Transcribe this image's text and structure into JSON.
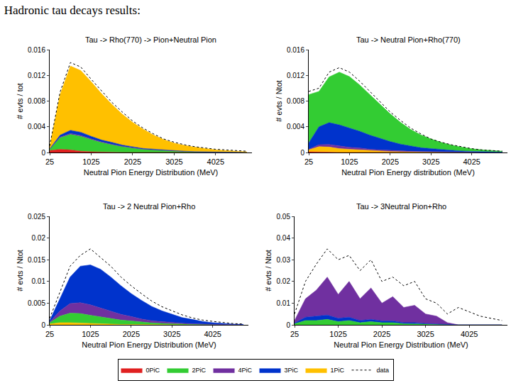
{
  "title": "Hadronic tau decays results:",
  "chart_data": [
    {
      "type": "area",
      "title": "Tau -> Rho(770) -> Pion+Neutral Pion",
      "x_label": "Neutral Pion Energy Distribution (MeV)",
      "y_label": "# evts / tot",
      "x": [
        25,
        275,
        525,
        775,
        1025,
        1275,
        1525,
        1775,
        2025,
        2275,
        2525,
        2775,
        3025,
        3275,
        3525,
        3775,
        4025,
        4275,
        4525,
        4775
      ],
      "xlim": [
        25,
        4900
      ],
      "xticks": [
        25,
        1025,
        2025,
        3025,
        4025
      ],
      "ylim": [
        0,
        0.016
      ],
      "yticks": [
        0,
        0.004,
        0.008,
        0.012,
        0.016
      ],
      "stacked": true,
      "grid": false,
      "legend": "bottom",
      "series": [
        {
          "name": "0PiC",
          "color": "#e02020",
          "values": [
            0.0003,
            0.0005,
            0.0004,
            0.0002,
            0.0001,
            5e-05,
            0,
            0,
            0,
            0,
            0,
            0,
            0,
            0,
            0,
            0,
            0,
            0,
            0,
            0
          ]
        },
        {
          "name": "2PiC",
          "color": "#33cc33",
          "values": [
            0.0002,
            0.0018,
            0.0024,
            0.0023,
            0.0019,
            0.0015,
            0.0012,
            0.0009,
            0.0007,
            0.0005,
            0.0004,
            0.0003,
            0.0002,
            0.00015,
            0.0001,
            8e-05,
            5e-05,
            3e-05,
            2e-05,
            1e-05
          ]
        },
        {
          "name": "4PiC",
          "color": "#7030a0",
          "values": [
            2e-05,
            0.0001,
            0.00015,
            0.00015,
            0.00012,
            0.0001,
            8e-05,
            6e-05,
            4e-05,
            3e-05,
            2e-05,
            2e-05,
            1e-05,
            1e-05,
            0,
            0,
            0,
            0,
            0,
            0
          ]
        },
        {
          "name": "3PiC",
          "color": "#0033cc",
          "values": [
            5e-05,
            0.0003,
            0.0005,
            0.0005,
            0.0004,
            0.0003,
            0.0003,
            0.0002,
            0.00015,
            0.0001,
            0.0001,
            8e-05,
            5e-05,
            4e-05,
            3e-05,
            2e-05,
            2e-05,
            1e-05,
            1e-05,
            0
          ]
        },
        {
          "name": "1PiC",
          "color": "#ffc000",
          "values": [
            0.0003,
            0.0063,
            0.01,
            0.0096,
            0.0085,
            0.0072,
            0.0059,
            0.0048,
            0.0038,
            0.003,
            0.0022,
            0.0016,
            0.0012,
            0.0009,
            0.0007,
            0.0005,
            0.00035,
            0.00025,
            0.00017,
            0.0001
          ]
        },
        {
          "name": "data",
          "color": "#000000",
          "type": "line",
          "line_style": "dotted",
          "values": [
            0.001,
            0.0094,
            0.014,
            0.0133,
            0.0114,
            0.0096,
            0.0078,
            0.0063,
            0.0049,
            0.0038,
            0.0029,
            0.0021,
            0.0016,
            0.0012,
            0.0009,
            0.0007,
            0.0005,
            0.0004,
            0.0003,
            0.0002
          ]
        }
      ]
    },
    {
      "type": "area",
      "title": "Tau -> Neutral Pion+Rho(770)",
      "x_label": "Neutral Pion Energy distribution (MeV)",
      "y_label": "# evts / Ntot",
      "x": [
        25,
        275,
        525,
        775,
        1025,
        1275,
        1525,
        1775,
        2025,
        2275,
        2525,
        2775,
        3025,
        3275,
        3525,
        3775,
        4025,
        4275,
        4525,
        4775
      ],
      "xlim": [
        25,
        4900
      ],
      "xticks": [
        25,
        1025,
        2025,
        3025,
        4025
      ],
      "ylim": [
        0,
        0.016
      ],
      "yticks": [
        0,
        0.004,
        0.008,
        0.012,
        0.016
      ],
      "stacked": true,
      "grid": false,
      "legend": "bottom",
      "series": [
        {
          "name": "0PiC",
          "color": "#e02020",
          "values": [
            0.0001,
            0.0001,
            5e-05,
            0,
            0,
            0,
            0,
            0,
            0,
            0,
            0,
            0,
            0,
            0,
            0,
            0,
            0,
            0,
            0,
            0
          ]
        },
        {
          "name": "1PiC",
          "color": "#ffc000",
          "values": [
            0.0003,
            0.0008,
            0.0008,
            0.0006,
            0.0005,
            0.0004,
            0.0003,
            0.0002,
            0.00015,
            0.0001,
            8e-05,
            6e-05,
            4e-05,
            3e-05,
            2e-05,
            1e-05,
            0,
            0,
            0,
            0
          ]
        },
        {
          "name": "4PiC",
          "color": "#7030a0",
          "values": [
            0.0001,
            0.0003,
            0.0004,
            0.0004,
            0.0003,
            0.0003,
            0.0002,
            0.0002,
            0.00015,
            0.0001,
            0.0001,
            8e-05,
            6e-05,
            4e-05,
            3e-05,
            2e-05,
            2e-05,
            1e-05,
            1e-05,
            0
          ]
        },
        {
          "name": "3PiC",
          "color": "#0033cc",
          "values": [
            0.001,
            0.0028,
            0.0034,
            0.0033,
            0.003,
            0.0026,
            0.0022,
            0.0018,
            0.0014,
            0.0011,
            0.0008,
            0.0006,
            0.0005,
            0.0004,
            0.0003,
            0.0002,
            0.00015,
            0.0001,
            8e-05,
            5e-05
          ]
        },
        {
          "name": "2PiC",
          "color": "#33cc33",
          "values": [
            0.0075,
            0.0055,
            0.0071,
            0.0082,
            0.008,
            0.0072,
            0.0063,
            0.0053,
            0.0043,
            0.0034,
            0.0026,
            0.002,
            0.0015,
            0.0011,
            0.0008,
            0.0006,
            0.0004,
            0.0003,
            0.0002,
            0.00015
          ]
        },
        {
          "name": "data",
          "color": "#000000",
          "type": "line",
          "line_style": "dotted",
          "values": [
            0.0095,
            0.01,
            0.0125,
            0.0132,
            0.0125,
            0.0111,
            0.0095,
            0.0079,
            0.0063,
            0.005,
            0.0038,
            0.0029,
            0.0021,
            0.0016,
            0.0012,
            0.0009,
            0.0006,
            0.0004,
            0.0003,
            0.0002
          ]
        }
      ]
    },
    {
      "type": "area",
      "title": "Tau -> 2 Neutral Pion+Rho",
      "x_label": "Neutral Pion Energy Distribution (MeV)",
      "y_label": "# evts / Ntot",
      "x": [
        25,
        275,
        525,
        775,
        1025,
        1275,
        1525,
        1775,
        2025,
        2275,
        2525,
        2775,
        3025,
        3275,
        3525,
        3775,
        4025,
        4275,
        4525,
        4775
      ],
      "xlim": [
        25,
        4900
      ],
      "xticks": [
        25,
        1025,
        2025,
        3025,
        4025
      ],
      "ylim": [
        0,
        0.025
      ],
      "yticks": [
        0,
        0.005,
        0.01,
        0.015,
        0.02,
        0.025
      ],
      "stacked": true,
      "grid": false,
      "legend": "bottom",
      "series": [
        {
          "name": "1PiC",
          "color": "#ffc000",
          "values": [
            0.0002,
            0.0005,
            0.0005,
            0.0004,
            0.0003,
            0.0002,
            0.0002,
            0.0001,
            0.0001,
            5e-05,
            5e-05,
            3e-05,
            2e-05,
            1e-05,
            0,
            0,
            0,
            0,
            0,
            0
          ]
        },
        {
          "name": "2PiC",
          "color": "#33cc33",
          "values": [
            0.0003,
            0.0015,
            0.0022,
            0.0022,
            0.0019,
            0.0016,
            0.0013,
            0.001,
            0.0008,
            0.0006,
            0.0004,
            0.0003,
            0.0002,
            0.00015,
            0.0001,
            6e-05,
            4e-05,
            2e-05,
            1e-05,
            0
          ]
        },
        {
          "name": "4PiC",
          "color": "#7030a0",
          "values": [
            0.0001,
            0.0012,
            0.0022,
            0.0025,
            0.0024,
            0.0021,
            0.0017,
            0.0013,
            0.001,
            0.0007,
            0.0005,
            0.0004,
            0.0003,
            0.0002,
            0.00015,
            0.0001,
            6e-05,
            4e-05,
            2e-05,
            1e-05
          ]
        },
        {
          "name": "3PiC",
          "color": "#0033cc",
          "values": [
            0.0004,
            0.0028,
            0.0061,
            0.0084,
            0.0092,
            0.0089,
            0.0078,
            0.0066,
            0.0053,
            0.0043,
            0.0033,
            0.0025,
            0.0019,
            0.0013,
            0.001,
            0.0006,
            0.0004,
            0.00025,
            0.00015,
            0.0001
          ]
        },
        {
          "name": "data",
          "color": "#000000",
          "type": "line",
          "line_style": "dotted",
          "values": [
            0.0015,
            0.0075,
            0.0135,
            0.016,
            0.0175,
            0.0155,
            0.0135,
            0.011,
            0.009,
            0.0072,
            0.0055,
            0.0042,
            0.0032,
            0.0023,
            0.0016,
            0.0011,
            0.0008,
            0.0005,
            0.0003,
            0.0002
          ]
        }
      ]
    },
    {
      "type": "area",
      "title": "Tau -> 3Neutral Pion+Rho",
      "x_label": "Neutral Pion Energy Distribution (MeV)",
      "y_label": "# evts / Ntot",
      "x": [
        25,
        275,
        525,
        775,
        1025,
        1275,
        1525,
        1775,
        2025,
        2275,
        2525,
        2775,
        3025,
        3275,
        3525,
        3775,
        4025,
        4275,
        4525,
        4775
      ],
      "xlim": [
        25,
        4900
      ],
      "xticks": [
        25,
        1025,
        2025,
        3025,
        4025
      ],
      "ylim": [
        0,
        0.05
      ],
      "yticks": [
        0,
        0.01,
        0.02,
        0.03,
        0.04,
        0.05
      ],
      "stacked": true,
      "grid": false,
      "legend": "bottom",
      "series": [
        {
          "name": "2PiC",
          "color": "#33cc33",
          "values": [
            0.0005,
            0.002,
            0.002,
            0.0025,
            0.0015,
            0.002,
            0.001,
            0.0015,
            0.001,
            0.001,
            0.0005,
            0.0005,
            0.0003,
            0.0002,
            0,
            0,
            0,
            0,
            0,
            0
          ]
        },
        {
          "name": "3PiC",
          "color": "#0033cc",
          "values": [
            0.0003,
            0.0015,
            0.002,
            0.002,
            0.0015,
            0.0015,
            0.001,
            0.001,
            0.0008,
            0.0008,
            0.0005,
            0.0005,
            0.0003,
            0.0002,
            0,
            0,
            0,
            0,
            0,
            0
          ]
        },
        {
          "name": "4PiC",
          "color": "#7030a0",
          "values": [
            0.0012,
            0.0085,
            0.012,
            0.0175,
            0.011,
            0.0165,
            0.01,
            0.0145,
            0.0082,
            0.0112,
            0.007,
            0.008,
            0.0044,
            0.0036,
            0.001,
            0,
            0,
            0,
            0,
            0
          ]
        },
        {
          "name": "data",
          "color": "#000000",
          "type": "line",
          "line_style": "dotted",
          "values": [
            0.005,
            0.02,
            0.028,
            0.035,
            0.03,
            0.032,
            0.025,
            0.03,
            0.02,
            0.022,
            0.018,
            0.02,
            0.012,
            0.01,
            0.005,
            0.008,
            0.006,
            0.004,
            0.003,
            0.002
          ]
        }
      ]
    }
  ]
}
